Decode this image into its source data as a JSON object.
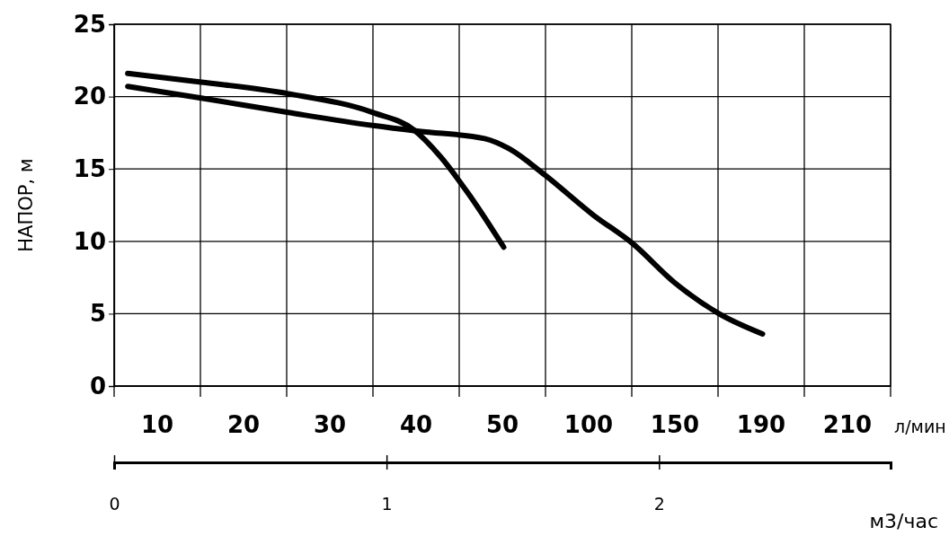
{
  "chart_data": {
    "type": "line",
    "ylabel": "НАПОР, м",
    "xlabel": "м3/час",
    "annotations": [
      "10",
      "20",
      "30",
      "40",
      "50",
      "100",
      "150",
      "190",
      "210",
      "л/мин"
    ],
    "xlim": [
      0,
      2.85
    ],
    "xticks": [
      0,
      1,
      2
    ],
    "ylim": [
      0,
      25
    ],
    "yticks": [
      0,
      5,
      10,
      15,
      20,
      25
    ],
    "grid": true,
    "series": [
      {
        "color": "#000000",
        "x": [
          0.05,
          0.32,
          0.64,
          0.95,
          1.1,
          1.2,
          1.3,
          1.43
        ],
        "values": [
          21.6,
          21.0,
          20.2,
          18.9,
          17.7,
          15.8,
          13.3,
          9.6
        ]
      },
      {
        "color": "#000000",
        "x": [
          0.05,
          0.32,
          0.64,
          0.95,
          1.12,
          1.36,
          1.45,
          1.58,
          1.76,
          1.9,
          2.06,
          2.22,
          2.38
        ],
        "values": [
          20.7,
          19.9,
          18.9,
          18.0,
          17.6,
          17.1,
          16.4,
          14.6,
          11.8,
          9.9,
          7.1,
          5.0,
          3.6
        ]
      }
    ]
  }
}
